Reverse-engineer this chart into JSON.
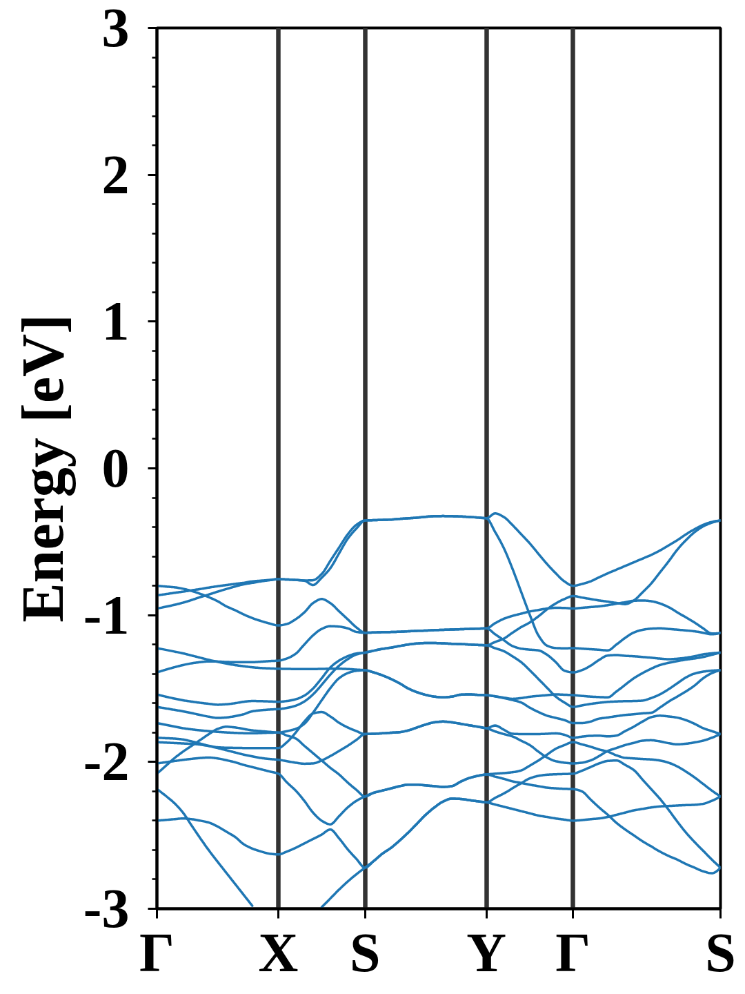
{
  "chart_data": {
    "type": "line",
    "ylabel": "Energy [eV]",
    "color": "#1f77b4",
    "grid": "x",
    "categories": [
      "Γ",
      null,
      null,
      null,
      null,
      null,
      null,
      null,
      null,
      null,
      null,
      null,
      null,
      null,
      "X",
      null,
      null,
      null,
      null,
      null,
      null,
      null,
      null,
      null,
      "S",
      null,
      null,
      null,
      null,
      null,
      null,
      null,
      null,
      null,
      null,
      null,
      null,
      null,
      "Y",
      null,
      null,
      null,
      null,
      null,
      null,
      null,
      null,
      null,
      "Γ",
      null,
      null,
      null,
      null,
      null,
      null,
      null,
      null,
      null,
      null,
      null,
      null,
      null,
      null,
      null,
      null,
      "S"
    ],
    "ylim": [
      -3,
      3
    ],
    "yticks": [
      -3,
      {
        "value": -2.8,
        "label": null
      },
      {
        "value": -2.6,
        "label": null
      },
      {
        "value": -2.4,
        "label": null
      },
      {
        "value": -2.2,
        "label": null
      },
      -2,
      {
        "value": -1.8,
        "label": null
      },
      {
        "value": -1.6,
        "label": null
      },
      {
        "value": -1.4,
        "label": null
      },
      {
        "value": -1.2,
        "label": null
      },
      -1,
      {
        "value": -0.8,
        "label": null
      },
      {
        "value": -0.6,
        "label": null
      },
      {
        "value": -0.4,
        "label": null
      },
      {
        "value": -0.2,
        "label": null
      },
      0,
      {
        "value": 0.2,
        "label": null
      },
      {
        "value": 0.4,
        "label": null
      },
      {
        "value": 0.6,
        "label": null
      },
      {
        "value": 0.8,
        "label": null
      },
      1,
      {
        "value": 1.2,
        "label": null
      },
      {
        "value": 1.4,
        "label": null
      },
      {
        "value": 1.6,
        "label": null
      },
      {
        "value": 1.8,
        "label": null
      },
      2,
      {
        "value": 2.2,
        "label": null
      },
      {
        "value": 2.4,
        "label": null
      },
      {
        "value": 2.6,
        "label": null
      },
      {
        "value": 2.8,
        "label": null
      },
      3
    ],
    "series": [
      {
        "values": [
          -0.865,
          -0.857,
          -0.848,
          -0.84,
          -0.831,
          -0.822,
          -0.812,
          -0.803,
          -0.795,
          -0.787,
          -0.78,
          -0.77,
          -0.765,
          -0.76,
          -0.755,
          -0.757,
          -0.76,
          -0.765,
          -0.795,
          -0.745,
          -0.68,
          -0.58,
          -0.48,
          -0.41,
          -0.355,
          -0.353,
          -0.351,
          -0.349,
          -0.344,
          -0.34,
          -0.336,
          -0.33,
          -0.326,
          -0.325,
          -0.326,
          -0.328,
          -0.331,
          -0.335,
          -0.34,
          -0.307,
          -0.331,
          -0.386,
          -0.448,
          -0.511,
          -0.582,
          -0.652,
          -0.715,
          -0.77,
          -0.8,
          -0.788,
          -0.77,
          -0.742,
          -0.715,
          -0.69,
          -0.665,
          -0.64,
          -0.615,
          -0.59,
          -0.56,
          -0.525,
          -0.49,
          -0.45,
          -0.415,
          -0.385,
          -0.365,
          -0.355
        ]
      },
      {
        "values": [
          -0.955,
          -0.943,
          -0.93,
          -0.915,
          -0.897,
          -0.877,
          -0.859,
          -0.84,
          -0.822,
          -0.805,
          -0.79,
          -0.78,
          -0.77,
          -0.762,
          -0.755,
          -0.757,
          -0.76,
          -0.764,
          -0.762,
          -0.72,
          -0.63,
          -0.54,
          -0.45,
          -0.385,
          -0.355,
          -0.353,
          -0.351,
          -0.349,
          -0.344,
          -0.34,
          -0.336,
          -0.33,
          -0.326,
          -0.325,
          -0.326,
          -0.328,
          -0.331,
          -0.335,
          -0.34,
          -0.433,
          -0.542,
          -0.683,
          -0.84,
          -0.997,
          -1.138,
          -1.208,
          -1.224,
          -1.226,
          -1.225,
          -1.228,
          -1.232,
          -1.236,
          -1.24,
          -1.2,
          -1.155,
          -1.118,
          -1.1,
          -1.092,
          -1.09,
          -1.094,
          -1.099,
          -1.104,
          -1.11,
          -1.12,
          -1.13,
          -1.12
        ]
      },
      {
        "values": [
          -0.8,
          -0.805,
          -0.81,
          -0.82,
          -0.835,
          -0.855,
          -0.878,
          -0.905,
          -0.94,
          -0.966,
          -0.995,
          -1.02,
          -1.04,
          -1.057,
          -1.07,
          -1.06,
          -1.028,
          -0.981,
          -0.918,
          -0.89,
          -0.918,
          -0.973,
          -1.028,
          -1.083,
          -1.12,
          -1.118,
          -1.116,
          -1.115,
          -1.113,
          -1.11,
          -1.107,
          -1.105,
          -1.102,
          -1.1,
          -1.098,
          -1.096,
          -1.094,
          -1.092,
          -1.09,
          -1.055,
          -1.025,
          -1.005,
          -0.99,
          -0.975,
          -0.965,
          -0.955,
          -0.95,
          -0.951,
          -0.955,
          -0.95,
          -0.945,
          -0.94,
          -0.932,
          -0.922,
          -0.912,
          -0.902,
          -0.9,
          -0.905,
          -0.92,
          -0.945,
          -0.98,
          -1.015,
          -1.05,
          -1.09,
          -1.125,
          -1.12
        ]
      },
      {
        "values": [
          -1.39,
          -1.372,
          -1.355,
          -1.34,
          -1.328,
          -1.32,
          -1.315,
          -1.316,
          -1.319,
          -1.32,
          -1.32,
          -1.32,
          -1.317,
          -1.313,
          -1.31,
          -1.295,
          -1.263,
          -1.2,
          -1.138,
          -1.094,
          -1.075,
          -1.078,
          -1.09,
          -1.114,
          -1.12,
          -1.118,
          -1.116,
          -1.115,
          -1.113,
          -1.11,
          -1.107,
          -1.105,
          -1.102,
          -1.1,
          -1.098,
          -1.096,
          -1.094,
          -1.092,
          -1.09,
          -1.13,
          -1.17,
          -1.21,
          -1.228,
          -1.235,
          -1.24,
          -1.27,
          -1.32,
          -1.378,
          -1.39,
          -1.375,
          -1.345,
          -1.305,
          -1.275,
          -1.272,
          -1.277,
          -1.28,
          -1.285,
          -1.29,
          -1.296,
          -1.3,
          -1.297,
          -1.29,
          -1.28,
          -1.267,
          -1.26,
          -1.255
        ]
      },
      {
        "values": [
          -1.54,
          -1.555,
          -1.568,
          -1.58,
          -1.589,
          -1.597,
          -1.604,
          -1.61,
          -1.607,
          -1.6,
          -1.59,
          -1.585,
          -1.586,
          -1.588,
          -1.59,
          -1.585,
          -1.573,
          -1.548,
          -1.5,
          -1.43,
          -1.356,
          -1.31,
          -1.28,
          -1.261,
          -1.255,
          -1.242,
          -1.23,
          -1.221,
          -1.21,
          -1.2,
          -1.193,
          -1.19,
          -1.19,
          -1.192,
          -1.195,
          -1.197,
          -1.2,
          -1.203,
          -1.205,
          -1.183,
          -1.16,
          -1.12,
          -1.082,
          -1.05,
          -1.008,
          -0.96,
          -0.92,
          -0.89,
          -0.87,
          -0.88,
          -0.89,
          -0.9,
          -0.908,
          -0.917,
          -0.925,
          -0.9,
          -0.845,
          -0.785,
          -0.71,
          -0.635,
          -0.555,
          -0.49,
          -0.435,
          -0.395,
          -0.37,
          -0.355
        ]
      },
      {
        "values": [
          -1.625,
          -1.635,
          -1.645,
          -1.655,
          -1.667,
          -1.68,
          -1.692,
          -1.7,
          -1.697,
          -1.688,
          -1.675,
          -1.655,
          -1.648,
          -1.643,
          -1.64,
          -1.632,
          -1.617,
          -1.588,
          -1.54,
          -1.475,
          -1.405,
          -1.345,
          -1.3,
          -1.268,
          -1.255,
          -1.242,
          -1.23,
          -1.221,
          -1.21,
          -1.2,
          -1.193,
          -1.19,
          -1.19,
          -1.192,
          -1.195,
          -1.197,
          -1.2,
          -1.203,
          -1.205,
          -1.225,
          -1.245,
          -1.28,
          -1.32,
          -1.375,
          -1.435,
          -1.495,
          -1.555,
          -1.595,
          -1.625,
          -1.615,
          -1.605,
          -1.597,
          -1.591,
          -1.588,
          -1.586,
          -1.585,
          -1.582,
          -1.565,
          -1.54,
          -1.505,
          -1.465,
          -1.425,
          -1.398,
          -1.385,
          -1.378,
          -1.375
        ]
      },
      {
        "values": [
          -1.225,
          -1.236,
          -1.248,
          -1.26,
          -1.275,
          -1.29,
          -1.305,
          -1.318,
          -1.33,
          -1.34,
          -1.348,
          -1.355,
          -1.36,
          -1.363,
          -1.365,
          -1.366,
          -1.367,
          -1.367,
          -1.367,
          -1.366,
          -1.365,
          -1.365,
          -1.367,
          -1.371,
          -1.375,
          -1.39,
          -1.41,
          -1.435,
          -1.465,
          -1.5,
          -1.525,
          -1.543,
          -1.555,
          -1.56,
          -1.555,
          -1.542,
          -1.54,
          -1.543,
          -1.545,
          -1.553,
          -1.562,
          -1.57,
          -1.565,
          -1.556,
          -1.55,
          -1.545,
          -1.54,
          -1.542,
          -1.545,
          -1.55,
          -1.555,
          -1.558,
          -1.56,
          -1.52,
          -1.475,
          -1.43,
          -1.395,
          -1.365,
          -1.34,
          -1.325,
          -1.313,
          -1.303,
          -1.295,
          -1.285,
          -1.27,
          -1.255
        ]
      },
      {
        "values": [
          -2.08,
          -2.028,
          -1.975,
          -1.93,
          -1.89,
          -1.85,
          -1.81,
          -1.775,
          -1.76,
          -1.765,
          -1.775,
          -1.785,
          -1.79,
          -1.795,
          -1.8,
          -1.79,
          -1.775,
          -1.74,
          -1.665,
          -1.58,
          -1.497,
          -1.43,
          -1.395,
          -1.379,
          -1.375,
          -1.39,
          -1.41,
          -1.435,
          -1.465,
          -1.5,
          -1.525,
          -1.543,
          -1.555,
          -1.56,
          -1.555,
          -1.542,
          -1.54,
          -1.543,
          -1.545,
          -1.553,
          -1.565,
          -1.578,
          -1.595,
          -1.63,
          -1.66,
          -1.685,
          -1.7,
          -1.715,
          -1.735,
          -1.735,
          -1.725,
          -1.705,
          -1.697,
          -1.688,
          -1.68,
          -1.675,
          -1.669,
          -1.665,
          -1.63,
          -1.59,
          -1.555,
          -1.52,
          -1.48,
          -1.43,
          -1.395,
          -1.375
        ]
      },
      {
        "values": [
          -1.835,
          -1.838,
          -1.841,
          -1.847,
          -1.86,
          -1.875,
          -1.89,
          -1.9,
          -1.903,
          -1.904,
          -1.905,
          -1.905,
          -1.905,
          -1.905,
          -1.905,
          -1.865,
          -1.8,
          -1.725,
          -1.67,
          -1.66,
          -1.69,
          -1.733,
          -1.765,
          -1.79,
          -1.81,
          -1.808,
          -1.805,
          -1.801,
          -1.797,
          -1.785,
          -1.765,
          -1.745,
          -1.73,
          -1.725,
          -1.73,
          -1.74,
          -1.75,
          -1.76,
          -1.77,
          -1.752,
          -1.78,
          -1.808,
          -1.81,
          -1.81,
          -1.81,
          -1.808,
          -1.805,
          -1.815,
          -1.835,
          -1.828,
          -1.822,
          -1.821,
          -1.826,
          -1.82,
          -1.79,
          -1.76,
          -1.725,
          -1.695,
          -1.685,
          -1.69,
          -1.698,
          -1.715,
          -1.74,
          -1.77,
          -1.79,
          -1.81
        ]
      },
      {
        "values": [
          -1.865,
          -1.868,
          -1.871,
          -1.874,
          -1.877,
          -1.882,
          -1.892,
          -1.905,
          -1.92,
          -1.935,
          -1.95,
          -1.962,
          -1.973,
          -1.98,
          -1.985,
          -1.995,
          -2.005,
          -2.012,
          -2.01,
          -1.99,
          -1.96,
          -1.925,
          -1.89,
          -1.85,
          -1.81,
          -1.808,
          -1.805,
          -1.801,
          -1.797,
          -1.785,
          -1.765,
          -1.745,
          -1.73,
          -1.725,
          -1.73,
          -1.74,
          -1.75,
          -1.76,
          -1.77,
          -1.792,
          -1.81,
          -1.826,
          -1.855,
          -1.885,
          -1.93,
          -1.97,
          -1.995,
          -2.005,
          -2.01,
          -2.005,
          -1.99,
          -1.96,
          -1.925,
          -1.905,
          -1.885,
          -1.87,
          -1.855,
          -1.852,
          -1.86,
          -1.872,
          -1.88,
          -1.876,
          -1.867,
          -1.855,
          -1.835,
          -1.81
        ]
      },
      {
        "values": [
          -1.735,
          -1.747,
          -1.759,
          -1.77,
          -1.778,
          -1.785,
          -1.79,
          -1.795,
          -1.799,
          -1.802,
          -1.804,
          -1.805,
          -1.803,
          -1.801,
          -1.8,
          -1.82,
          -1.84,
          -1.89,
          -1.94,
          -1.99,
          -2.04,
          -2.085,
          -2.14,
          -2.19,
          -2.235,
          -2.21,
          -2.195,
          -2.18,
          -2.165,
          -2.155,
          -2.155,
          -2.16,
          -2.165,
          -2.17,
          -2.165,
          -2.135,
          -2.11,
          -2.095,
          -2.085,
          -2.08,
          -2.076,
          -2.07,
          -2.058,
          -2.025,
          -1.99,
          -1.95,
          -1.91,
          -1.885,
          -1.865,
          -1.88,
          -1.896,
          -1.915,
          -1.93,
          -1.955,
          -1.972,
          -1.976,
          -1.98,
          -1.983,
          -1.99,
          -2.005,
          -2.03,
          -2.065,
          -2.105,
          -2.15,
          -2.195,
          -2.235
        ]
      },
      {
        "values": [
          -2.01,
          -2.002,
          -1.994,
          -1.986,
          -1.979,
          -1.973,
          -1.97,
          -1.976,
          -1.988,
          -2.002,
          -2.02,
          -2.035,
          -2.05,
          -2.065,
          -2.08,
          -2.14,
          -2.195,
          -2.265,
          -2.345,
          -2.4,
          -2.425,
          -2.37,
          -2.31,
          -2.265,
          -2.235,
          -2.21,
          -2.195,
          -2.18,
          -2.165,
          -2.155,
          -2.155,
          -2.16,
          -2.165,
          -2.17,
          -2.165,
          -2.135,
          -2.11,
          -2.095,
          -2.085,
          -2.1,
          -2.115,
          -2.132,
          -2.143,
          -2.155,
          -2.165,
          -2.175,
          -2.18,
          -2.183,
          -2.185,
          -2.2,
          -2.255,
          -2.31,
          -2.36,
          -2.415,
          -2.46,
          -2.5,
          -2.54,
          -2.575,
          -2.61,
          -2.64,
          -2.665,
          -2.695,
          -2.72,
          -2.745,
          -2.758,
          -2.72
        ]
      },
      {
        "values": [
          -2.4,
          -2.395,
          -2.39,
          -2.385,
          -2.39,
          -2.4,
          -2.413,
          -2.44,
          -2.475,
          -2.51,
          -2.56,
          -2.59,
          -2.61,
          -2.625,
          -2.63,
          -2.61,
          -2.585,
          -2.555,
          -2.525,
          -2.495,
          -2.46,
          -2.52,
          -2.595,
          -2.66,
          -2.72,
          -2.675,
          -2.625,
          -2.585,
          -2.535,
          -2.48,
          -2.42,
          -2.36,
          -2.31,
          -2.27,
          -2.25,
          -2.252,
          -2.26,
          -2.268,
          -2.275,
          -2.245,
          -2.215,
          -2.18,
          -2.145,
          -2.112,
          -2.095,
          -2.087,
          -2.084,
          -2.082,
          -2.08,
          -2.06,
          -2.035,
          -2.01,
          -1.993,
          -1.99,
          -2.02,
          -2.055,
          -2.12,
          -2.185,
          -2.25,
          -2.325,
          -2.405,
          -2.48,
          -2.545,
          -2.605,
          -2.665,
          -2.72
        ]
      },
      {
        "values": [
          -2.185,
          -2.23,
          -2.28,
          -2.345,
          -2.433,
          -2.52,
          -2.603,
          -2.68,
          -2.755,
          -2.83,
          -2.905,
          -2.98,
          null,
          null,
          null,
          null,
          null,
          null,
          null,
          -2.99,
          -2.93,
          -2.87,
          -2.815,
          -2.765,
          -2.72,
          -2.675,
          -2.625,
          -2.585,
          -2.535,
          -2.48,
          -2.42,
          -2.36,
          -2.31,
          -2.27,
          -2.25,
          -2.252,
          -2.26,
          -2.268,
          -2.275,
          -2.29,
          -2.305,
          -2.32,
          -2.335,
          -2.35,
          -2.365,
          -2.375,
          -2.385,
          -2.393,
          -2.4,
          -2.396,
          -2.39,
          -2.385,
          -2.375,
          -2.36,
          -2.345,
          -2.33,
          -2.32,
          -2.31,
          -2.303,
          -2.3,
          -2.297,
          -2.294,
          -2.292,
          -2.285,
          -2.265,
          -2.235
        ]
      }
    ]
  }
}
